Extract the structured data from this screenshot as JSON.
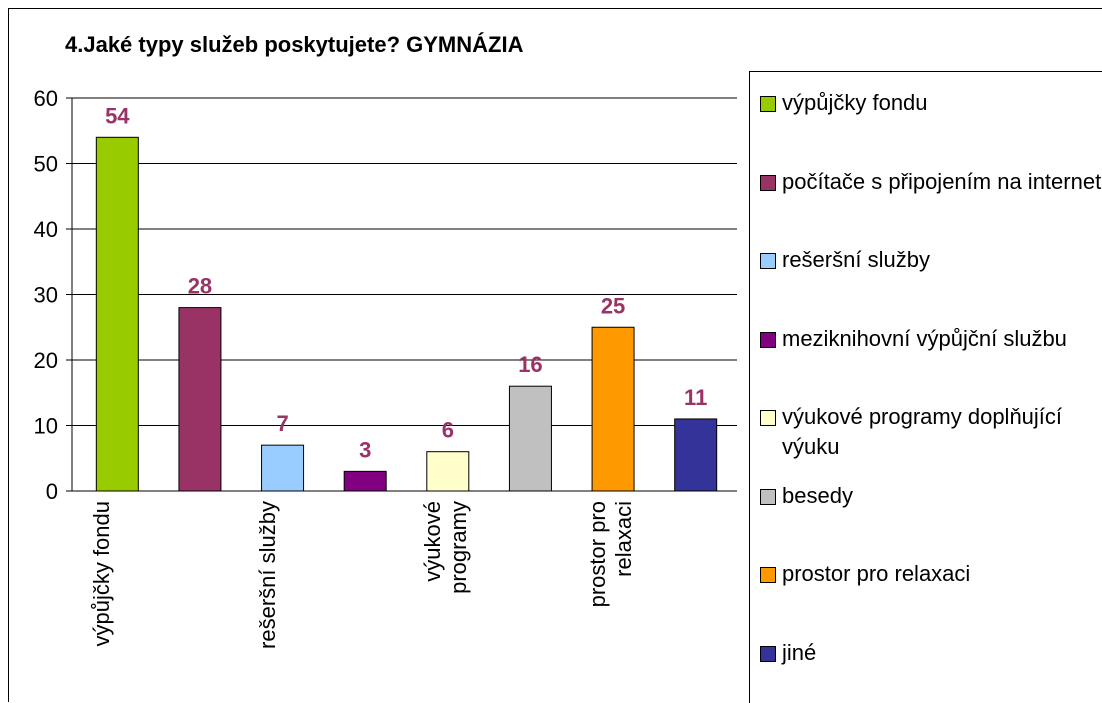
{
  "chart_data": {
    "type": "bar",
    "title": "4.Jaké typy služeb poskytujete? GYMNÁZIA",
    "categories": [
      "výpůjčky fondu",
      null,
      "rešeršní služby",
      null,
      "výukové programy",
      null,
      "prostor pro relaxaci",
      null
    ],
    "values": [
      54,
      28,
      7,
      3,
      6,
      16,
      25,
      11
    ],
    "colors": [
      "#99cc00",
      "#993366",
      "#99ccff",
      "#800080",
      "#ffffcc",
      "#c0c0c0",
      "#ff9900",
      "#333399"
    ],
    "legend": [
      "výpůjčky fondu",
      "počítače s připojením na internet",
      "rešeršní služby",
      "meziknihovní výpůjční službu",
      "výukové programy doplňující výuku",
      "besedy",
      "prostor pro relaxaci",
      "jiné"
    ],
    "value_label_color": "#993366",
    "ylim": [
      0,
      60
    ],
    "yticks": [
      0,
      10,
      20,
      30,
      40,
      50,
      60
    ],
    "grid": true
  }
}
